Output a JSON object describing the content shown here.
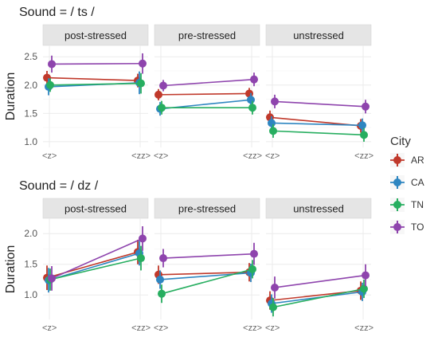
{
  "legend": {
    "title": "City",
    "entries": [
      {
        "name": "AR",
        "color": "#C0392B"
      },
      {
        "name": "CA",
        "color": "#2E86C1"
      },
      {
        "name": "TN",
        "color": "#27AE60"
      },
      {
        "name": "TO",
        "color": "#8E44AD"
      }
    ]
  },
  "chart_data": [
    {
      "type": "line",
      "title": "Sound = / ts /",
      "ylabel": "Duration",
      "xlabel": "",
      "categories": [
        "<z>",
        "<zz>"
      ],
      "ylim": [
        0.9,
        2.7
      ],
      "yticks": [
        1.0,
        1.5,
        2.0,
        2.5
      ],
      "ytick_labels": [
        "1.0",
        "1.5",
        "2.0",
        "2.5"
      ],
      "grid": true,
      "facets": [
        {
          "name": "post-stressed",
          "series": [
            {
              "name": "AR",
              "values": [
                2.13,
                2.08
              ],
              "err": [
                0.12,
                0.12
              ]
            },
            {
              "name": "CA",
              "values": [
                1.97,
                2.04
              ],
              "err": [
                0.15,
                0.2
              ]
            },
            {
              "name": "TN",
              "values": [
                2.0,
                2.03
              ],
              "err": [
                0.12,
                0.18
              ]
            },
            {
              "name": "TO",
              "values": [
                2.37,
                2.38
              ],
              "err": [
                0.15,
                0.18
              ]
            }
          ]
        },
        {
          "name": "pre-stressed",
          "series": [
            {
              "name": "AR",
              "values": [
                1.83,
                1.85
              ],
              "err": [
                0.1,
                0.1
              ]
            },
            {
              "name": "CA",
              "values": [
                1.58,
                1.74
              ],
              "err": [
                0.12,
                0.12
              ]
            },
            {
              "name": "TN",
              "values": [
                1.6,
                1.6
              ],
              "err": [
                0.12,
                0.12
              ]
            },
            {
              "name": "TO",
              "values": [
                1.99,
                2.1
              ],
              "err": [
                0.1,
                0.12
              ]
            }
          ]
        },
        {
          "name": "unstressed",
          "series": [
            {
              "name": "AR",
              "values": [
                1.43,
                1.28
              ],
              "err": [
                0.12,
                0.12
              ]
            },
            {
              "name": "CA",
              "values": [
                1.33,
                1.29
              ],
              "err": [
                0.12,
                0.12
              ]
            },
            {
              "name": "TN",
              "values": [
                1.19,
                1.12
              ],
              "err": [
                0.12,
                0.12
              ]
            },
            {
              "name": "TO",
              "values": [
                1.71,
                1.62
              ],
              "err": [
                0.12,
                0.12
              ]
            }
          ]
        }
      ]
    },
    {
      "type": "line",
      "title": "Sound = / dz /",
      "ylabel": "Duration",
      "xlabel": "",
      "categories": [
        "<z>",
        "<zz>"
      ],
      "ylim": [
        0.6,
        2.25
      ],
      "yticks": [
        1.0,
        1.5,
        2.0
      ],
      "ytick_labels": [
        "1.0",
        "1.5",
        "2.0"
      ],
      "grid": true,
      "facets": [
        {
          "name": "post-stressed",
          "series": [
            {
              "name": "AR",
              "values": [
                1.28,
                1.7
              ],
              "err": [
                0.2,
                0.2
              ]
            },
            {
              "name": "CA",
              "values": [
                1.24,
                1.68
              ],
              "err": [
                0.2,
                0.2
              ]
            },
            {
              "name": "TN",
              "values": [
                1.25,
                1.6
              ],
              "err": [
                0.18,
                0.2
              ]
            },
            {
              "name": "TO",
              "values": [
                1.27,
                1.92
              ],
              "err": [
                0.2,
                0.2
              ]
            }
          ]
        },
        {
          "name": "pre-stressed",
          "series": [
            {
              "name": "AR",
              "values": [
                1.33,
                1.37
              ],
              "err": [
                0.15,
                0.15
              ]
            },
            {
              "name": "CA",
              "values": [
                1.25,
                1.36
              ],
              "err": [
                0.15,
                0.15
              ]
            },
            {
              "name": "TN",
              "values": [
                1.02,
                1.42
              ],
              "err": [
                0.15,
                0.15
              ]
            },
            {
              "name": "TO",
              "values": [
                1.6,
                1.67
              ],
              "err": [
                0.15,
                0.18
              ]
            }
          ]
        },
        {
          "name": "unstressed",
          "series": [
            {
              "name": "AR",
              "values": [
                0.91,
                1.07
              ],
              "err": [
                0.15,
                0.15
              ]
            },
            {
              "name": "CA",
              "values": [
                0.86,
                1.05
              ],
              "err": [
                0.15,
                0.15
              ]
            },
            {
              "name": "TN",
              "values": [
                0.8,
                1.1
              ],
              "err": [
                0.15,
                0.15
              ]
            },
            {
              "name": "TO",
              "values": [
                1.12,
                1.32
              ],
              "err": [
                0.18,
                0.18
              ]
            }
          ]
        }
      ]
    }
  ]
}
